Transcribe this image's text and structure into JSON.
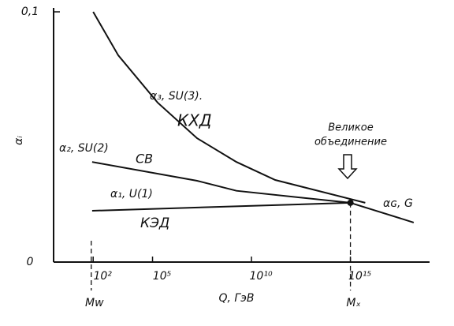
{
  "chart_data": {
    "type": "line",
    "x_label": "Q, ГэВ",
    "y_label": "αᵢ",
    "xscale": "log",
    "xlim": [
      1,
      1e+19
    ],
    "ylim": [
      0,
      0.1
    ],
    "xticks": [
      {
        "value": 100,
        "label": "10²"
      },
      {
        "value": 100000,
        "label": "10⁵"
      },
      {
        "value": 10000000000,
        "label": "10¹⁰"
      },
      {
        "value": 1000000000000000,
        "label": "10¹⁵"
      }
    ],
    "yticks": [
      {
        "value": 0,
        "label": "0"
      },
      {
        "value": 0.1,
        "label": "0,1"
      }
    ],
    "color": "#111111",
    "series": [
      {
        "name": "α₃, SU(3).",
        "x": [
          100,
          1860,
          181970,
          17780000,
          1738000000,
          158500000000,
          5623000000000000
        ],
        "values": [
          0.1,
          0.0826,
          0.0637,
          0.0495,
          0.04,
          0.0328,
          0.0237
        ]
      },
      {
        "name": "α₂, SU(2)",
        "x": [
          89,
          17780000,
          1738000000,
          1000000000000000
        ],
        "values": [
          0.04,
          0.0325,
          0.0285,
          0.0237
        ]
      },
      {
        "name": "α₁, U(1)",
        "x": [
          89,
          1000000000000000
        ],
        "values": [
          0.0205,
          0.0237
        ]
      },
      {
        "name": "αɢ, G",
        "x": [
          1000000000000000,
          1585000000000000000
        ],
        "values": [
          0.0237,
          0.0158
        ]
      }
    ],
    "annotations": [
      "КХД",
      "СВ",
      "КЭД",
      "Великое",
      "объединение"
    ],
    "markers": [
      {
        "label": "Mᴡ",
        "x": 80
      },
      {
        "label": "Mₓ",
        "x": 1000000000000000
      }
    ]
  }
}
